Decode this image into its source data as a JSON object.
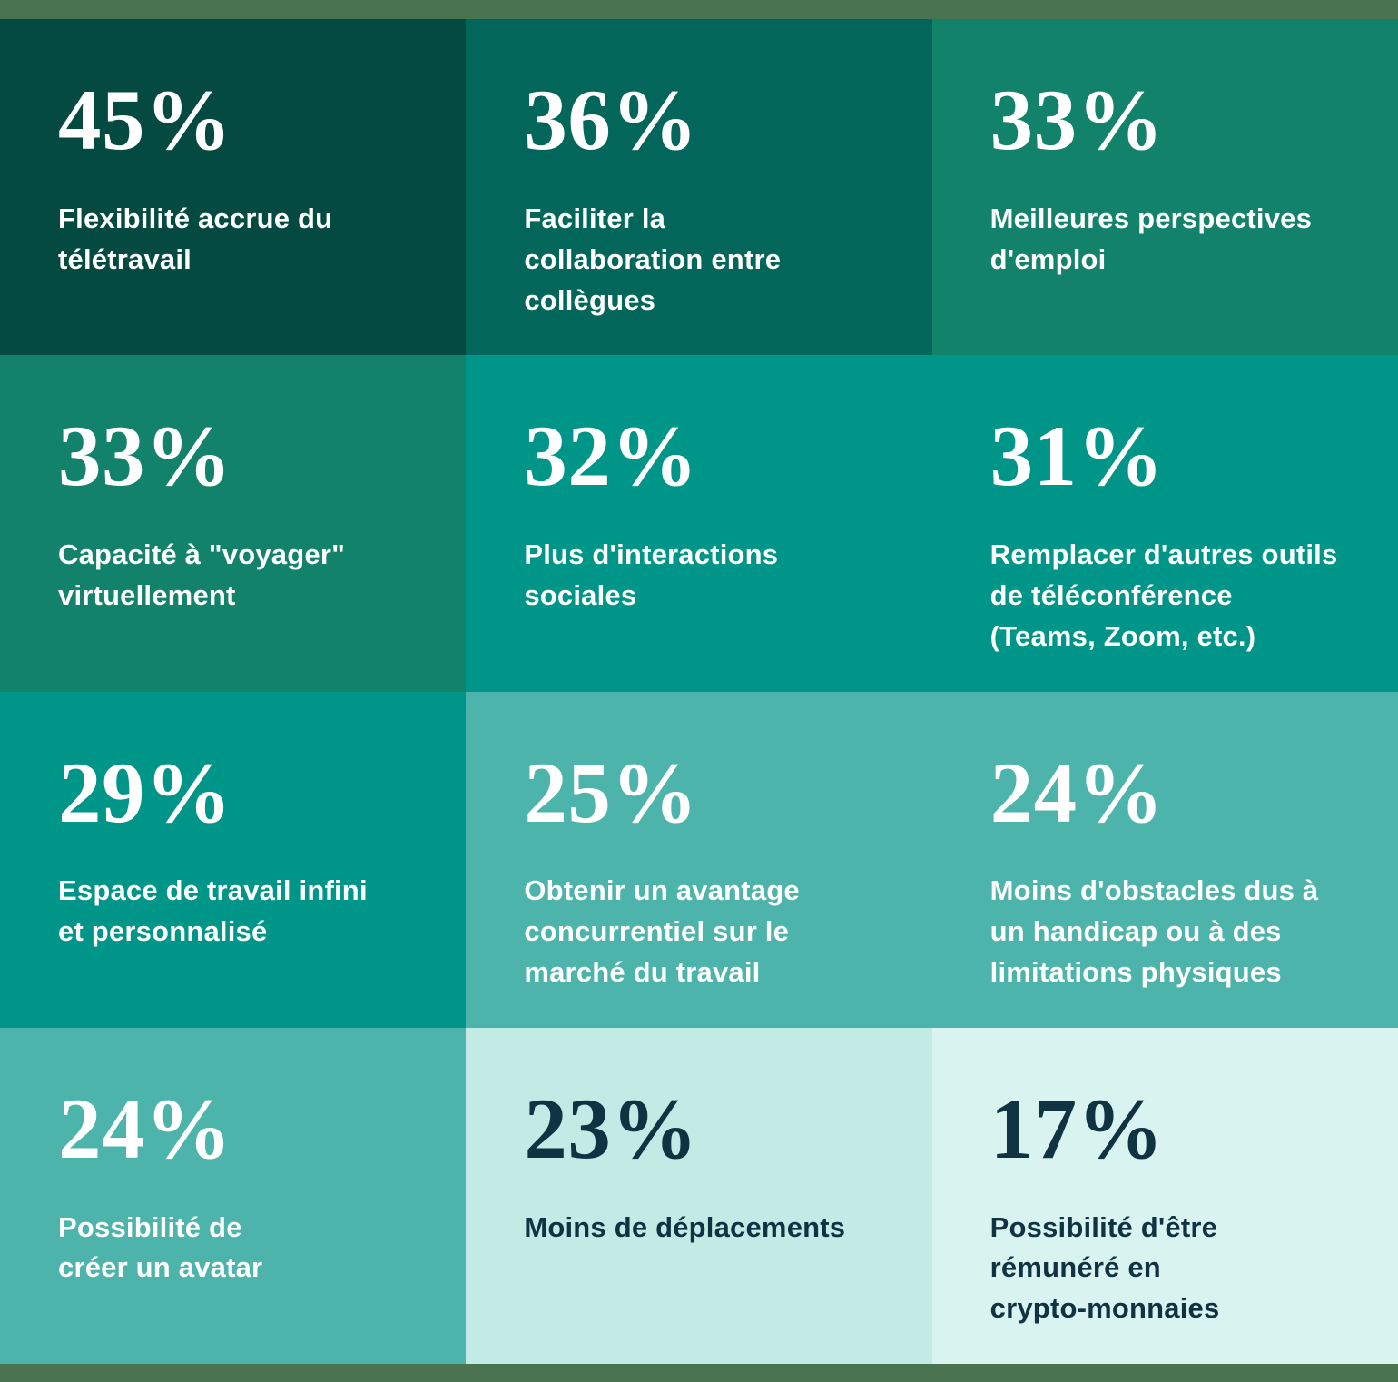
{
  "colors": {
    "frame_strip": "#4a7350",
    "band_darkest": "#054a40",
    "band_dark": "#02665a",
    "band_green": "#13826b",
    "band_teal": "#009589",
    "band_sage": "#4db4ab",
    "band_mint": "#c3ebe6",
    "band_palest": "#d9f3f0",
    "text_light": "#ffffff",
    "text_dark": "#0f3343"
  },
  "cells": [
    {
      "value": "45%",
      "label": "Flexibilité accrue du\ntélétravail",
      "bg": "#054a40",
      "fg": "#ffffff"
    },
    {
      "value": "36%",
      "label": "Faciliter la\ncollaboration entre\ncollègues",
      "bg": "#02665a",
      "fg": "#ffffff"
    },
    {
      "value": "33%",
      "label": "Meilleures perspectives\nd'emploi",
      "bg": "#13826b",
      "fg": "#ffffff"
    },
    {
      "value": "33%",
      "label": "Capacité à \"voyager\"\nvirtuellement",
      "bg": "#13826b",
      "fg": "#ffffff"
    },
    {
      "value": "32%",
      "label": "Plus d'interactions\nsociales",
      "bg": "#009589",
      "fg": "#ffffff"
    },
    {
      "value": "31%",
      "label": "Remplacer d'autres outils\nde téléconférence\n(Teams, Zoom, etc.)",
      "bg": "#009589",
      "fg": "#ffffff"
    },
    {
      "value": "29%",
      "label": "Espace de travail infini\net personnalisé",
      "bg": "#009589",
      "fg": "#ffffff"
    },
    {
      "value": "25%",
      "label": "Obtenir un avantage\nconcurrentiel sur le\nmarché du travail",
      "bg": "#4db4ab",
      "fg": "#ffffff"
    },
    {
      "value": "24%",
      "label": "Moins d'obstacles dus à\nun handicap ou à des\nlimitations physiques",
      "bg": "#4db4ab",
      "fg": "#ffffff"
    },
    {
      "value": "24%",
      "label": "Possibilité de\ncréer un avatar",
      "bg": "#4db4ab",
      "fg": "#ffffff"
    },
    {
      "value": "23%",
      "label": "Moins de déplacements",
      "bg": "#c3ebe6",
      "fg": "#0f3343"
    },
    {
      "value": "17%",
      "label": "Possibilité d'être\nrémunéré en\ncrypto-monnaies",
      "bg": "#d9f3f0",
      "fg": "#0f3343"
    }
  ],
  "chart_data": {
    "type": "table",
    "unit": "%",
    "categories": [
      "Flexibilité accrue du télétravail",
      "Faciliter la collaboration entre collègues",
      "Meilleures perspectives d'emploi",
      "Capacité à \"voyager\" virtuellement",
      "Plus d'interactions sociales",
      "Remplacer d'autres outils de téléconférence (Teams, Zoom, etc.)",
      "Espace de travail infini et personnalisé",
      "Obtenir un avantage concurrentiel sur le marché du travail",
      "Moins d'obstacles dus à un handicap ou à des limitations physiques",
      "Possibilité de créer un avatar",
      "Moins de déplacements",
      "Possibilité d'être rémunéré en crypto-monnaies"
    ],
    "values": [
      45,
      36,
      33,
      33,
      32,
      31,
      29,
      25,
      24,
      24,
      23,
      17
    ],
    "title": "",
    "xlabel": "",
    "ylabel": "",
    "layout": "4x3 tile grid, tiles shaded dark-to-light as percentage decreases, no gridlines, no legend"
  }
}
